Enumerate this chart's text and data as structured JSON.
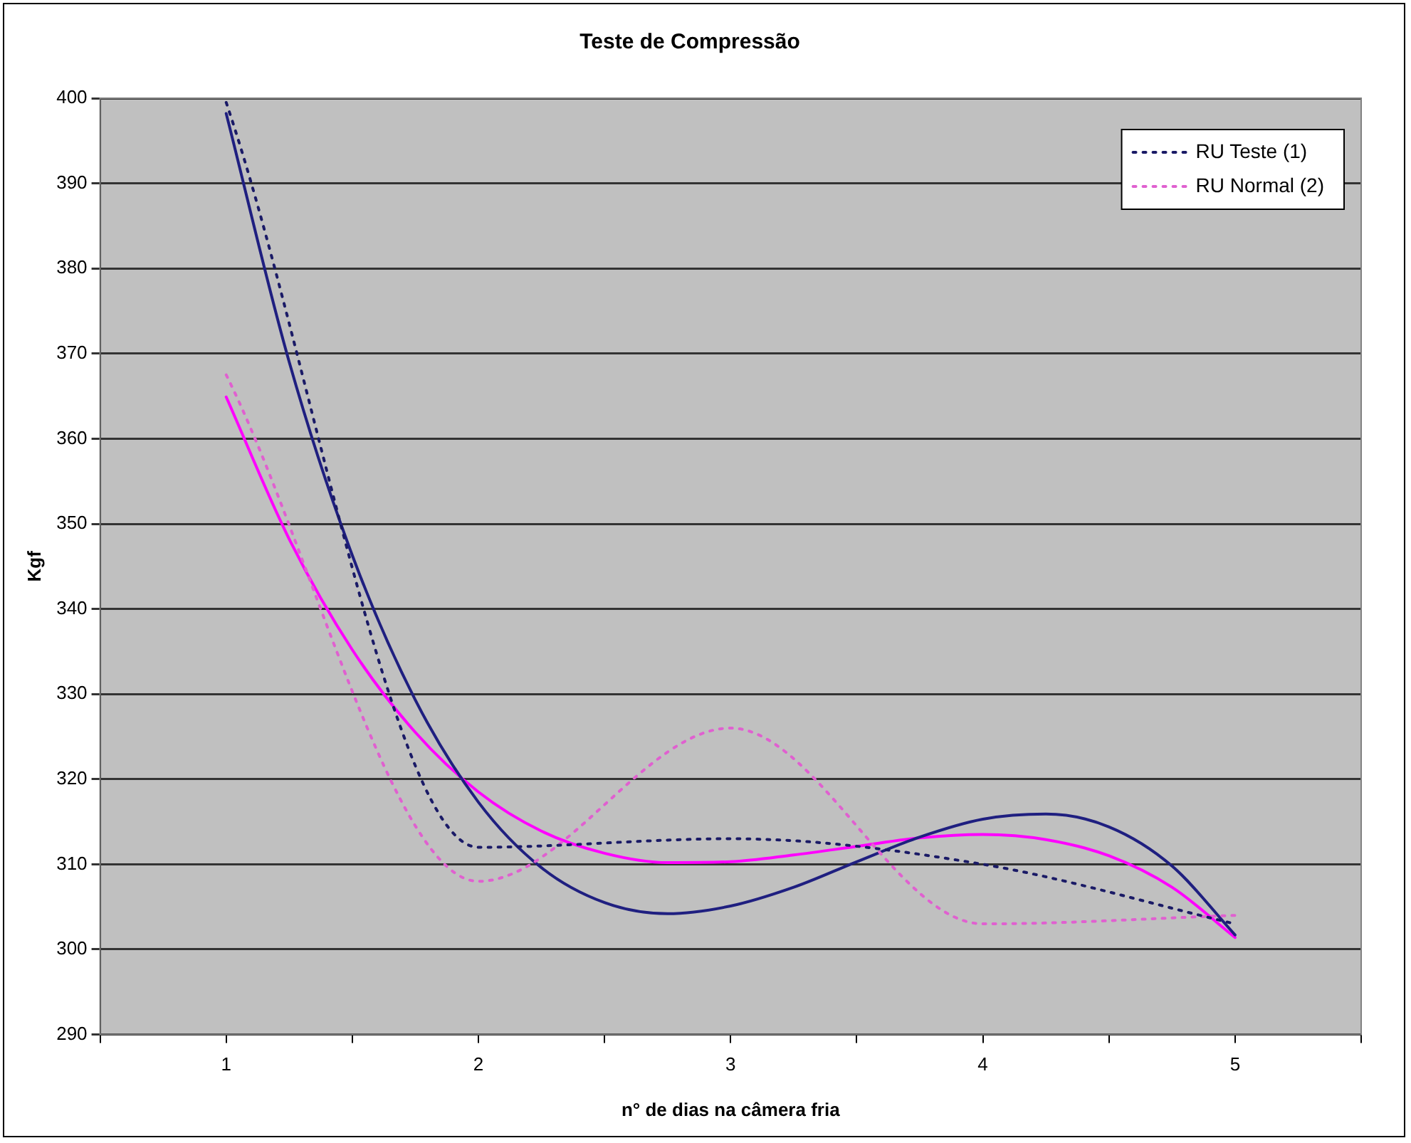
{
  "chart_data": {
    "type": "line",
    "title": "Teste de Compressão",
    "xlabel": "n° de dias na câmera fria",
    "ylabel": "Kgf",
    "x": [
      1,
      2,
      3,
      4,
      5
    ],
    "xlim": [
      0.5,
      5.5
    ],
    "xticks": [
      {
        "value": 0.5,
        "label": null
      },
      1,
      {
        "value": 1.5,
        "label": null
      },
      2,
      {
        "value": 2.5,
        "label": null
      },
      3,
      {
        "value": 3.5,
        "label": null
      },
      4,
      {
        "value": 4.5,
        "label": null
      },
      5,
      {
        "value": 5.5,
        "label": null
      }
    ],
    "ylim": [
      290,
      400
    ],
    "yticks": [
      290,
      300,
      310,
      320,
      330,
      340,
      350,
      360,
      370,
      380,
      390,
      400
    ],
    "grid": "y",
    "legend": "top right",
    "marker": "none",
    "series": [
      {
        "name": "RU Teste (1)",
        "color": "#1a1a66",
        "line_style": "dotted",
        "values": [
          399.5,
          312,
          313,
          310,
          303
        ]
      },
      {
        "name": "RU Normal (2)",
        "color": "#e060d0",
        "line_style": "dotted",
        "values": [
          367.5,
          308,
          326,
          303,
          304
        ]
      },
      {
        "color": "#1f1f80",
        "line_style": "solid",
        "x": [
          1,
          1.25,
          1.5,
          1.75,
          2,
          2.25,
          2.5,
          2.75,
          3,
          3.25,
          3.5,
          3.75,
          4,
          4.25,
          4.5,
          4.75,
          5
        ],
        "values": [
          398.2,
          369.0,
          346.3,
          329.3,
          317.3,
          309.6,
          305.5,
          304.2,
          305.1,
          307.3,
          310.3,
          313.2,
          315.3,
          315.9,
          314.4,
          309.8,
          301.7
        ]
      },
      {
        "color": "#ff00ff",
        "line_style": "solid",
        "x": [
          1,
          1.25,
          1.5,
          1.75,
          2,
          2.25,
          2.5,
          2.75,
          3,
          3.25,
          3.5,
          3.75,
          4,
          4.25,
          4.5,
          4.75,
          5
        ],
        "values": [
          364.9,
          348.2,
          335.2,
          325.5,
          318.5,
          313.9,
          311.3,
          310.2,
          310.3,
          311.1,
          312.1,
          313.1,
          313.5,
          312.9,
          311.0,
          307.3,
          301.4
        ]
      }
    ]
  }
}
